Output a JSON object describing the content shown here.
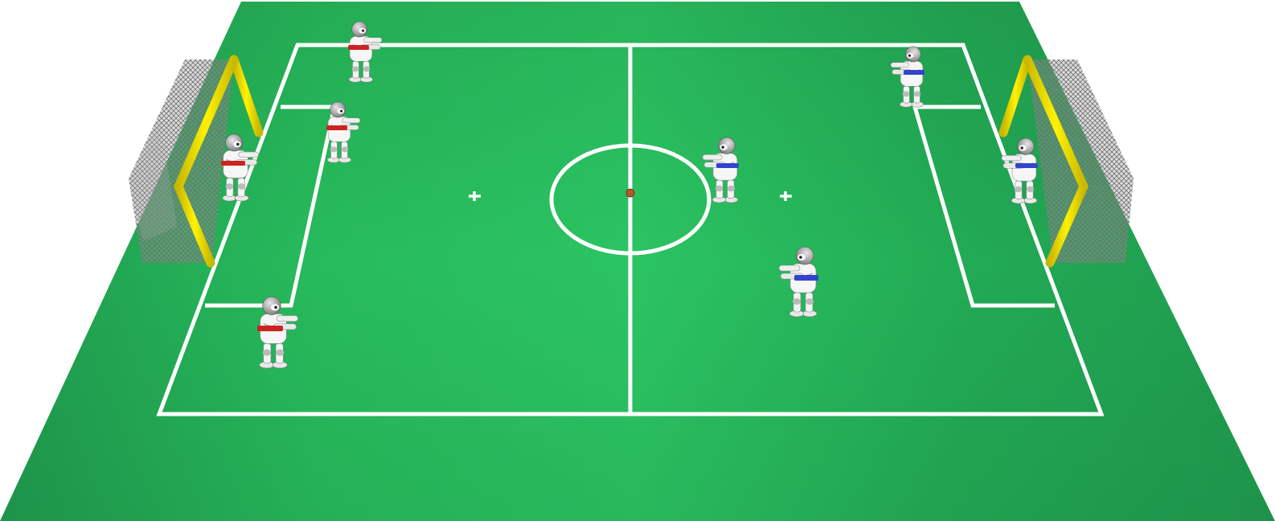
{
  "scene": {
    "name": "robot-soccer-simulation",
    "colors": {
      "background": "#ffffff",
      "carpet": "#22b35a",
      "carpet_dark": "#1a9a4c",
      "lines": "#ffffff",
      "goal_posts": "#ffee00",
      "goal_net": "#888888",
      "ball": "#b8572c",
      "red_team": "#cc2222",
      "blue_team": "#3344cc",
      "robot_body": "#f2f2f2",
      "robot_head": "#9a9a9a"
    },
    "teams": [
      {
        "name": "red",
        "robot_count": 4
      },
      {
        "name": "blue",
        "robot_count": 4
      }
    ],
    "goals": [
      "left-goal",
      "right-goal"
    ],
    "ball": "ball"
  }
}
